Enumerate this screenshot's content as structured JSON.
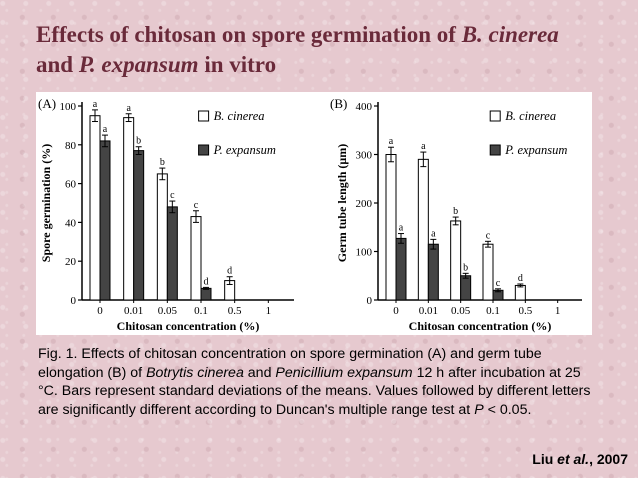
{
  "slide": {
    "title_part1": "Effects of chitosan on spore germination of ",
    "title_species1": "B. cinerea",
    "title_and": "and ",
    "title_species2": "P. expansum",
    "title_part2": " in vitro"
  },
  "caption": {
    "t1": "Fig. 1. Effects of chitosan concentration on spore germination (A) and germ tube elongation (B) of ",
    "sp1": "Botrytis cinerea",
    "t2": " and ",
    "sp2": "Penicillium expansum",
    "t3": " 12 h after incubation at 25 °C. Bars represent standard deviations of the means. Values followed by different letters are significantly different according to Duncan's multiple range test at ",
    "p": "P",
    "t4": " < 0.05."
  },
  "citation": {
    "author": "Liu ",
    "etal": "et al.",
    "year": ",  2007"
  },
  "chart_data": [
    {
      "type": "bar",
      "panel_label": "(A)",
      "ylabel": "Spore germination (%)",
      "xlabel": "Chitosan concentration  (%)",
      "categories": [
        "0",
        "0.01",
        "0.05",
        "0.1",
        "0.5",
        "1"
      ],
      "ylim": [
        0,
        100
      ],
      "yticks": [
        0,
        20,
        40,
        60,
        80,
        100
      ],
      "legend_position": "top-right",
      "series": [
        {
          "name": "B. cinerea",
          "color": "#ffffff",
          "values": [
            95,
            94,
            65,
            43,
            10,
            0
          ],
          "errors": [
            3,
            2,
            3,
            3,
            2,
            0
          ],
          "letters": [
            "a",
            "a",
            "b",
            "c",
            "d",
            ""
          ]
        },
        {
          "name": "P. expansum",
          "color": "#444444",
          "values": [
            82,
            77,
            48,
            6,
            0,
            0
          ],
          "errors": [
            3,
            2,
            3,
            0.5,
            0,
            0
          ],
          "letters": [
            "a",
            "b",
            "c",
            "d",
            "",
            ""
          ]
        }
      ]
    },
    {
      "type": "bar",
      "panel_label": "(B)",
      "ylabel": "Germ tube length (μm)",
      "xlabel": "Chitosan concentration  (%)",
      "categories": [
        "0",
        "0.01",
        "0.05",
        "0.1",
        "0.5",
        "1"
      ],
      "ylim": [
        0,
        400
      ],
      "yticks": [
        0,
        100,
        200,
        300,
        400
      ],
      "legend_position": "top-right",
      "series": [
        {
          "name": "B. cinerea",
          "color": "#ffffff",
          "values": [
            300,
            290,
            163,
            115,
            30,
            0
          ],
          "errors": [
            15,
            15,
            8,
            6,
            3,
            0
          ],
          "letters": [
            "a",
            "a",
            "b",
            "c",
            "d",
            ""
          ]
        },
        {
          "name": "P. expansum",
          "color": "#444444",
          "values": [
            127,
            115,
            50,
            20,
            0,
            0
          ],
          "errors": [
            10,
            10,
            5,
            3,
            0,
            0
          ],
          "letters": [
            "a",
            "a",
            "b",
            "c",
            "",
            ""
          ]
        }
      ]
    }
  ]
}
